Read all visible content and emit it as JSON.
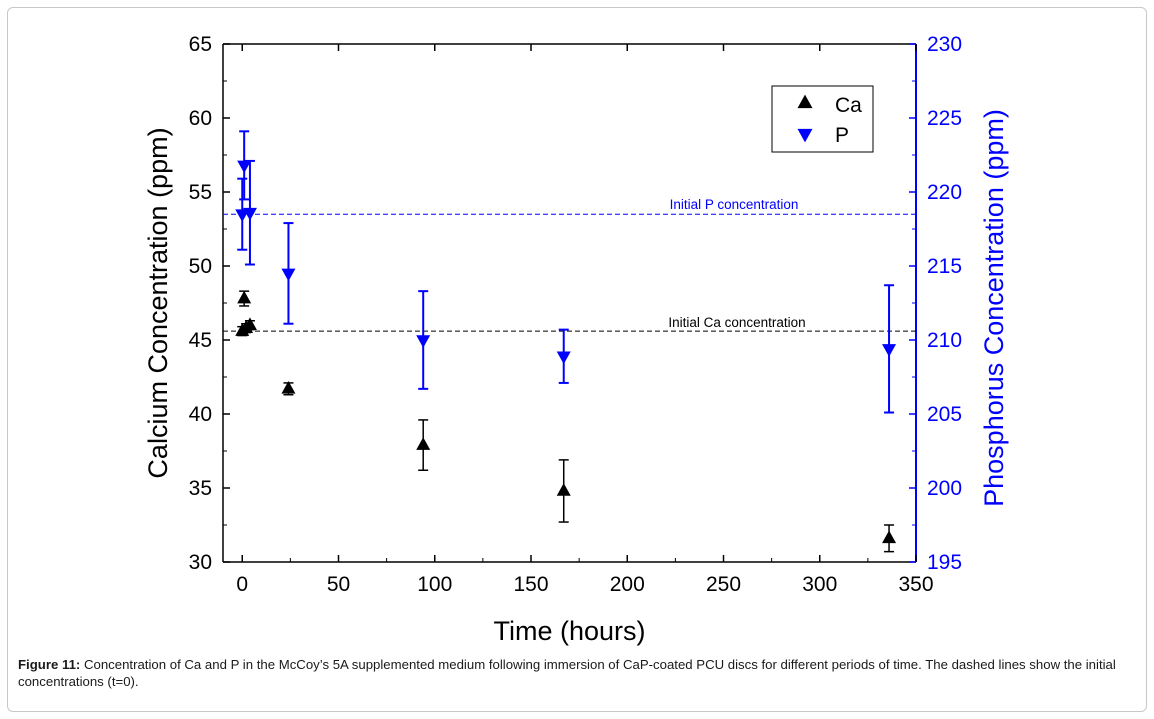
{
  "chart_data": {
    "type": "scatter",
    "xlabel": "Time (hours)",
    "ylabel_left": "Calcium Concentration (ppm)",
    "ylabel_right": "Phosphorus Concentration (ppm)",
    "xlim": [
      -10,
      350
    ],
    "ylim_left": [
      30,
      65
    ],
    "ylim_right": [
      195,
      230
    ],
    "x_ticks": [
      0,
      50,
      100,
      150,
      200,
      250,
      300,
      350
    ],
    "y_left_ticks": [
      30,
      35,
      40,
      45,
      50,
      55,
      60,
      65
    ],
    "y_right_ticks": [
      195,
      200,
      205,
      210,
      215,
      220,
      225,
      230
    ],
    "legend_position": "top-right",
    "series": [
      {
        "name": "Ca",
        "axis": "left",
        "marker": "triangle-up",
        "color": "#000000",
        "points": [
          {
            "x": 0,
            "y": 45.6,
            "err": 0.3
          },
          {
            "x": 1,
            "y": 47.8,
            "err": 0.5
          },
          {
            "x": 2,
            "y": 45.8,
            "err": 0.3
          },
          {
            "x": 4,
            "y": 46.0,
            "err": 0.3
          },
          {
            "x": 24,
            "y": 41.7,
            "err": 0.4
          },
          {
            "x": 94,
            "y": 37.9,
            "err": 1.7
          },
          {
            "x": 167,
            "y": 34.8,
            "err": 2.1
          },
          {
            "x": 336,
            "y": 31.6,
            "err": 0.9
          }
        ]
      },
      {
        "name": "P",
        "axis": "right",
        "marker": "triangle-down",
        "color": "#0000ff",
        "points": [
          {
            "x": 0,
            "y": 218.5,
            "err": 2.4
          },
          {
            "x": 1,
            "y": 221.8,
            "err": 2.3
          },
          {
            "x": 4,
            "y": 218.6,
            "err": 3.5
          },
          {
            "x": 24,
            "y": 214.5,
            "err": 3.4
          },
          {
            "x": 94,
            "y": 210.0,
            "err": 3.3
          },
          {
            "x": 167,
            "y": 208.9,
            "err": 1.8
          },
          {
            "x": 336,
            "y": 209.4,
            "err": 4.3
          }
        ]
      }
    ],
    "reference_lines": [
      {
        "label": "Initial P concentration",
        "axis": "right",
        "y": 218.5,
        "color": "#0000ff",
        "style": "dashed"
      },
      {
        "label": "Initial Ca concentration",
        "axis": "left",
        "y": 45.6,
        "color": "#000000",
        "style": "dashed"
      }
    ]
  },
  "caption": {
    "label": "Figure 11:",
    "text": " Concentration of Ca and P in the McCoy’s 5A supplemented medium following immersion of CaP-coated PCU discs for different periods of time. The dashed lines show the initial concentrations (t=0)."
  }
}
